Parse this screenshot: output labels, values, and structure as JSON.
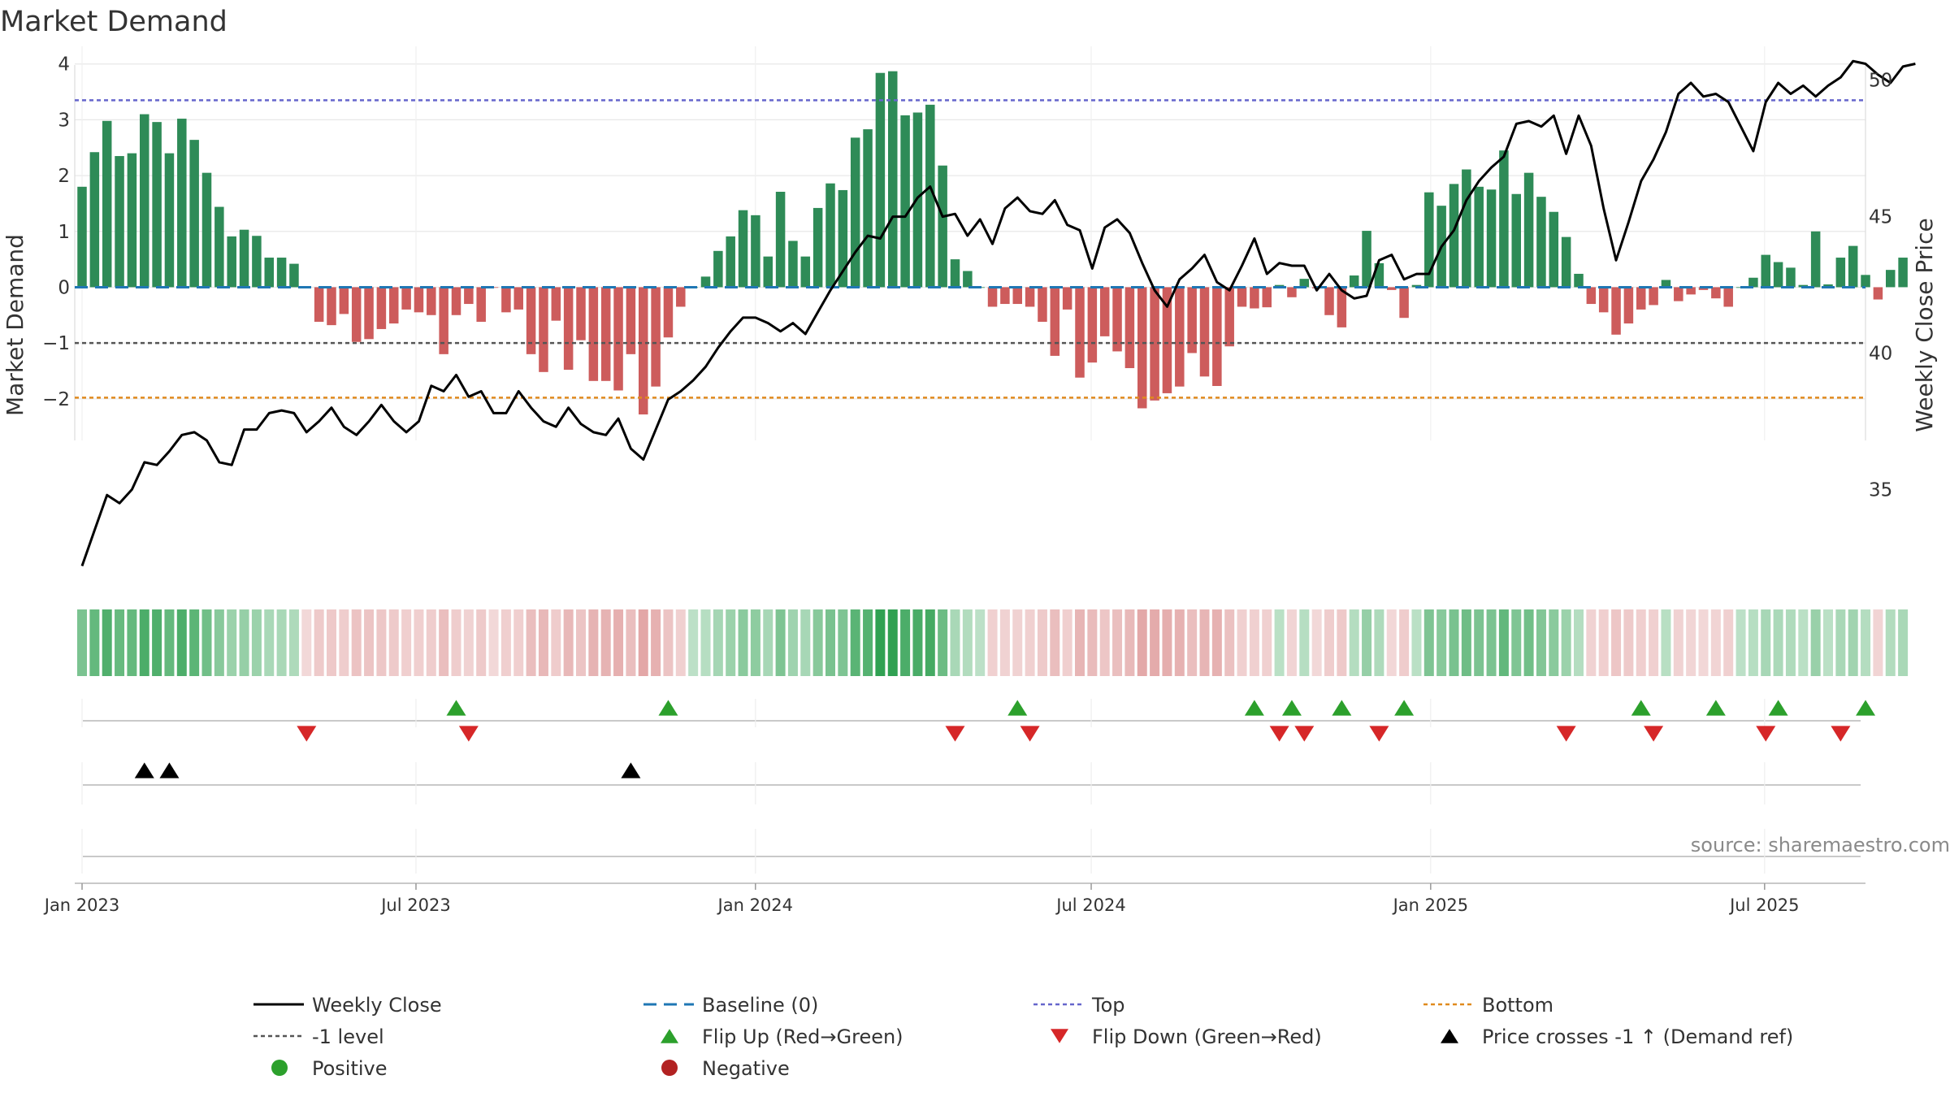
{
  "chart_data": {
    "type": "bar",
    "title": "Market Demand",
    "ylabel": "Market Demand",
    "y2label": "Weekly Close Price",
    "ylim": [
      -2.6,
      4.2
    ],
    "y2lim": [
      31.5,
      51.3
    ],
    "yticks": [
      4,
      3,
      2,
      1,
      0,
      -1,
      -2
    ],
    "y2ticks": [
      50,
      45,
      40,
      35
    ],
    "x_ticks": [
      "Jan 2023",
      "Jul 2023",
      "Jan 2024",
      "Jul 2024",
      "Jan 2025",
      "Jul 2025"
    ],
    "date_range": [
      "2023-01-01",
      "2025-09-14"
    ],
    "reference_lines": {
      "baseline": 0,
      "top": 3.35,
      "level_neg1": -1,
      "bottom": -1.98
    },
    "colors": {
      "positive_bar": "#2e8b57",
      "negative_bar": "#cd5c5c",
      "close_line": "#000000",
      "baseline": "#1f77b4",
      "top": "#6666cc",
      "level": "#555555",
      "bottom": "#e08a1e",
      "flip_up": "#2ca02c",
      "flip_down": "#d62728",
      "cross": "#000000"
    },
    "series": [
      {
        "name": "Market Demand",
        "values": [
          1.8,
          2.42,
          2.98,
          2.35,
          2.4,
          3.1,
          2.96,
          2.4,
          3.02,
          2.64,
          2.05,
          1.44,
          0.91,
          1.03,
          0.92,
          0.53,
          0.53,
          0.42,
          -0.01,
          -0.62,
          -0.68,
          -0.48,
          -0.98,
          -0.93,
          -0.75,
          -0.65,
          -0.4,
          -0.45,
          -0.5,
          -1.2,
          -0.5,
          -0.3,
          -0.62,
          -0.01,
          -0.45,
          -0.4,
          -1.2,
          -1.52,
          -0.6,
          -1.48,
          -0.95,
          -1.68,
          -1.68,
          -1.85,
          -1.2,
          -2.28,
          -1.78,
          -0.9,
          -0.35,
          0.0,
          0.19,
          0.65,
          0.91,
          1.38,
          1.29,
          0.55,
          1.71,
          0.83,
          0.55,
          1.42,
          1.86,
          1.74,
          2.68,
          2.83,
          3.84,
          3.87,
          3.08,
          3.13,
          3.27,
          2.18,
          0.5,
          0.29,
          0.0,
          -0.35,
          -0.3,
          -0.3,
          -0.35,
          -0.62,
          -1.23,
          -0.4,
          -1.62,
          -1.35,
          -0.88,
          -1.15,
          -1.45,
          -2.17,
          -2.03,
          -1.9,
          -1.78,
          -1.18,
          -1.6,
          -1.77,
          -1.06,
          -0.35,
          -0.38,
          -0.36,
          0.04,
          -0.18,
          0.15,
          -0.02,
          -0.5,
          -0.72,
          0.21,
          1.01,
          0.43,
          -0.05,
          -0.55,
          0.04,
          1.7,
          1.46,
          1.85,
          2.11,
          1.8,
          1.75,
          2.45,
          1.67,
          2.05,
          1.62,
          1.35,
          0.9,
          0.24,
          -0.3,
          -0.45,
          -0.85,
          -0.65,
          -0.4,
          -0.32,
          0.13,
          -0.25,
          -0.13,
          -0.05,
          -0.2,
          -0.35,
          0.0,
          0.17,
          0.58,
          0.45,
          0.35,
          0.04,
          1.0,
          0.05,
          0.53,
          0.74,
          0.22,
          -0.22,
          0.31,
          0.53
        ]
      },
      {
        "name": "Weekly Close",
        "values": [
          32.2,
          33.5,
          34.8,
          34.5,
          35.0,
          36.0,
          35.9,
          36.4,
          37.0,
          37.1,
          36.8,
          36.0,
          35.9,
          37.2,
          37.2,
          37.8,
          37.9,
          37.8,
          37.1,
          37.5,
          38.0,
          37.3,
          37.0,
          37.5,
          38.1,
          37.5,
          37.1,
          37.5,
          38.8,
          38.6,
          39.2,
          38.4,
          38.6,
          37.8,
          37.8,
          38.6,
          38.0,
          37.5,
          37.3,
          38.0,
          37.4,
          37.1,
          37.0,
          37.6,
          36.5,
          36.1,
          37.2,
          38.3,
          38.6,
          39.0,
          39.5,
          40.2,
          40.8,
          41.3,
          41.3,
          41.1,
          40.8,
          41.1,
          40.7,
          41.5,
          42.3,
          43.0,
          43.7,
          44.3,
          44.2,
          45.0,
          45.0,
          45.7,
          46.1,
          45.0,
          45.1,
          44.3,
          44.9,
          44.0,
          45.3,
          45.7,
          45.2,
          45.1,
          45.6,
          44.7,
          44.5,
          43.1,
          44.6,
          44.9,
          44.4,
          43.3,
          42.3,
          41.7,
          42.7,
          43.1,
          43.6,
          42.6,
          42.3,
          43.2,
          44.2,
          42.9,
          43.3,
          43.2,
          43.2,
          42.3,
          42.9,
          42.3,
          42.0,
          42.1,
          43.4,
          43.6,
          42.7,
          42.9,
          42.9,
          43.9,
          44.5,
          45.6,
          46.3,
          46.8,
          47.2,
          48.4,
          48.5,
          48.3,
          48.7,
          47.3,
          48.7,
          47.6,
          45.3,
          43.4,
          44.8,
          46.3,
          47.1,
          48.1,
          49.5,
          49.9,
          49.4,
          49.5,
          49.2,
          48.3,
          47.4,
          49.2,
          49.9,
          49.5,
          49.8,
          49.4,
          49.8,
          50.1,
          50.7,
          50.6,
          50.2,
          49.9,
          50.5,
          50.6
        ]
      }
    ],
    "heat_strip": [
      1.8,
      2.42,
      2.98,
      2.35,
      2.4,
      3.1,
      2.96,
      2.4,
      3.02,
      2.64,
      2.05,
      1.44,
      0.91,
      1.03,
      0.92,
      0.53,
      0.53,
      0.42,
      -0.01,
      -0.62,
      -0.68,
      -0.48,
      -0.98,
      -0.93,
      -0.75,
      -0.65,
      -0.4,
      -0.45,
      -0.5,
      -1.2,
      -0.5,
      -0.3,
      -0.62,
      -0.01,
      -0.45,
      -0.4,
      -1.2,
      -1.52,
      -0.6,
      -1.48,
      -0.95,
      -1.68,
      -1.68,
      -1.85,
      -1.2,
      -2.28,
      -1.78,
      -0.9,
      -0.35,
      0.0,
      0.19,
      0.65,
      0.91,
      1.38,
      1.29,
      0.55,
      1.71,
      0.83,
      0.55,
      1.42,
      1.86,
      1.74,
      2.68,
      2.83,
      3.84,
      3.87,
      3.08,
      3.13,
      3.27,
      2.18,
      0.5,
      0.29,
      0.0,
      -0.35,
      -0.3,
      -0.3,
      -0.35,
      -0.62,
      -1.23,
      -0.4,
      -1.62,
      -1.35,
      -0.88,
      -1.15,
      -1.45,
      -2.17,
      -2.03,
      -1.9,
      -1.78,
      -1.18,
      -1.6,
      -1.77,
      -1.06,
      -0.35,
      -0.38,
      -0.36,
      0.04,
      -0.18,
      0.15,
      -0.02,
      -0.5,
      -0.72,
      0.21,
      1.01,
      0.43,
      -0.05,
      -0.55,
      0.04,
      1.7,
      1.46,
      1.85,
      2.11,
      1.8,
      1.75,
      2.45,
      1.67,
      2.05,
      1.62,
      1.35,
      0.9,
      0.24,
      -0.3,
      -0.45,
      -0.85,
      -0.65,
      -0.4,
      -0.32,
      0.13,
      -0.25,
      -0.13,
      -0.05,
      -0.2,
      -0.35,
      0.0,
      0.17,
      0.58,
      0.45,
      0.35,
      0.04,
      1.0,
      0.05,
      0.53,
      0.74,
      0.22,
      -0.22,
      0.31,
      0.53
    ],
    "flip_up_weeks": [
      30,
      47,
      75,
      94,
      97,
      101,
      106,
      125,
      131,
      136,
      143
    ],
    "flip_down_weeks": [
      18,
      31,
      70,
      76,
      96,
      98,
      104,
      119,
      126,
      135,
      141
    ],
    "price_cross_weeks": [
      5,
      7,
      44
    ],
    "legend": [
      {
        "label": "Weekly Close",
        "symbol": "line-solid",
        "color": "#000000"
      },
      {
        "label": "Baseline (0)",
        "symbol": "line-dash",
        "color": "#1f77b4"
      },
      {
        "label": "Top",
        "symbol": "line-dot",
        "color": "#6666cc"
      },
      {
        "label": "Bottom",
        "symbol": "line-dot",
        "color": "#e08a1e"
      },
      {
        "label": "-1 level",
        "symbol": "line-dot",
        "color": "#555555"
      },
      {
        "label": "Flip Up (Red→Green)",
        "symbol": "tri-up",
        "color": "#2ca02c"
      },
      {
        "label": "Flip Down (Green→Red)",
        "symbol": "tri-down",
        "color": "#d62728"
      },
      {
        "label": "Price crosses -1 ↑ (Demand ref)",
        "symbol": "tri-up",
        "color": "#000000"
      },
      {
        "label": "Positive",
        "symbol": "dot",
        "color": "#2ca02c"
      },
      {
        "label": "Negative",
        "symbol": "dot",
        "color": "#b22222"
      }
    ],
    "source": "source: sharemaestro.com"
  }
}
